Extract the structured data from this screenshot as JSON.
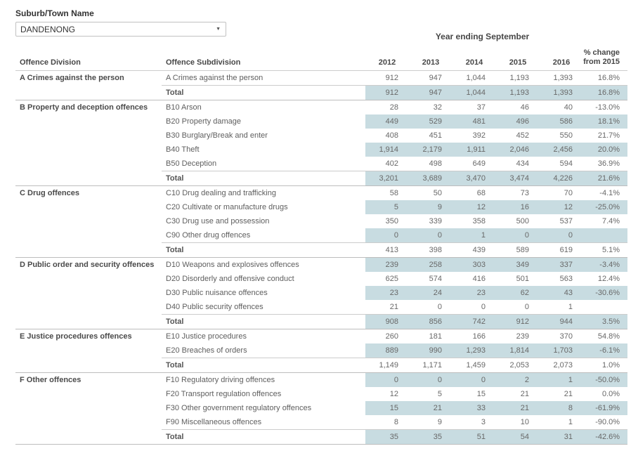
{
  "filter": {
    "label": "Suburb/Town Name",
    "value": "DANDENONG",
    "arrow_icon": "▼"
  },
  "colors": {
    "band": "#c8dce1",
    "header_text": "#474747",
    "body_text": "#686868",
    "divider": "#cccccc",
    "section_divider": "#bdbdbd"
  },
  "table": {
    "title": "Year ending September",
    "col_headers": {
      "division": "Offence Division",
      "subdivision": "Offence Subdivision",
      "years": [
        "2012",
        "2013",
        "2014",
        "2015",
        "2016"
      ],
      "pct_change": {
        "line1": "% change",
        "line2": "from 2015"
      }
    },
    "divisions": [
      {
        "name": "A Crimes against the person",
        "rows": [
          {
            "label": "A Crimes against the person",
            "values": [
              "912",
              "947",
              "1,044",
              "1,193",
              "1,393"
            ],
            "pct": "16.8%",
            "total": false
          },
          {
            "label": "Total",
            "values": [
              "912",
              "947",
              "1,044",
              "1,193",
              "1,393"
            ],
            "pct": "16.8%",
            "total": true
          }
        ]
      },
      {
        "name": "B Property and deception offences",
        "rows": [
          {
            "label": "B10 Arson",
            "values": [
              "28",
              "32",
              "37",
              "46",
              "40"
            ],
            "pct": "-13.0%",
            "total": false
          },
          {
            "label": "B20 Property damage",
            "values": [
              "449",
              "529",
              "481",
              "496",
              "586"
            ],
            "pct": "18.1%",
            "total": false
          },
          {
            "label": "B30 Burglary/Break and enter",
            "values": [
              "408",
              "451",
              "392",
              "452",
              "550"
            ],
            "pct": "21.7%",
            "total": false
          },
          {
            "label": "B40 Theft",
            "values": [
              "1,914",
              "2,179",
              "1,911",
              "2,046",
              "2,456"
            ],
            "pct": "20.0%",
            "total": false
          },
          {
            "label": "B50 Deception",
            "values": [
              "402",
              "498",
              "649",
              "434",
              "594"
            ],
            "pct": "36.9%",
            "total": false
          },
          {
            "label": "Total",
            "values": [
              "3,201",
              "3,689",
              "3,470",
              "3,474",
              "4,226"
            ],
            "pct": "21.6%",
            "total": true
          }
        ]
      },
      {
        "name": "C Drug offences",
        "rows": [
          {
            "label": "C10 Drug dealing and trafficking",
            "values": [
              "58",
              "50",
              "68",
              "73",
              "70"
            ],
            "pct": "-4.1%",
            "total": false
          },
          {
            "label": "C20 Cultivate or manufacture drugs",
            "values": [
              "5",
              "9",
              "12",
              "16",
              "12"
            ],
            "pct": "-25.0%",
            "total": false
          },
          {
            "label": "C30 Drug use and possession",
            "values": [
              "350",
              "339",
              "358",
              "500",
              "537"
            ],
            "pct": "7.4%",
            "total": false
          },
          {
            "label": "C90 Other drug offences",
            "values": [
              "0",
              "0",
              "1",
              "0",
              "0"
            ],
            "pct": "",
            "total": false
          },
          {
            "label": "Total",
            "values": [
              "413",
              "398",
              "439",
              "589",
              "619"
            ],
            "pct": "5.1%",
            "total": true
          }
        ]
      },
      {
        "name": "D Public order and security offences",
        "rows": [
          {
            "label": "D10 Weapons and explosives offences",
            "values": [
              "239",
              "258",
              "303",
              "349",
              "337"
            ],
            "pct": "-3.4%",
            "total": false
          },
          {
            "label": "D20 Disorderly and offensive conduct",
            "values": [
              "625",
              "574",
              "416",
              "501",
              "563"
            ],
            "pct": "12.4%",
            "total": false
          },
          {
            "label": "D30 Public nuisance offences",
            "values": [
              "23",
              "24",
              "23",
              "62",
              "43"
            ],
            "pct": "-30.6%",
            "total": false
          },
          {
            "label": "D40 Public security offences",
            "values": [
              "21",
              "0",
              "0",
              "0",
              "1"
            ],
            "pct": "",
            "total": false
          },
          {
            "label": "Total",
            "values": [
              "908",
              "856",
              "742",
              "912",
              "944"
            ],
            "pct": "3.5%",
            "total": true
          }
        ]
      },
      {
        "name": "E Justice procedures offences",
        "rows": [
          {
            "label": "E10 Justice procedures",
            "values": [
              "260",
              "181",
              "166",
              "239",
              "370"
            ],
            "pct": "54.8%",
            "total": false
          },
          {
            "label": "E20 Breaches of orders",
            "values": [
              "889",
              "990",
              "1,293",
              "1,814",
              "1,703"
            ],
            "pct": "-6.1%",
            "total": false
          },
          {
            "label": "Total",
            "values": [
              "1,149",
              "1,171",
              "1,459",
              "2,053",
              "2,073"
            ],
            "pct": "1.0%",
            "total": true
          }
        ]
      },
      {
        "name": "F Other offences",
        "rows": [
          {
            "label": "F10 Regulatory driving offences",
            "values": [
              "0",
              "0",
              "0",
              "2",
              "1"
            ],
            "pct": "-50.0%",
            "total": false
          },
          {
            "label": "F20 Transport regulation offences",
            "values": [
              "12",
              "5",
              "15",
              "21",
              "21"
            ],
            "pct": "0.0%",
            "total": false
          },
          {
            "label": "F30 Other government regulatory offences",
            "values": [
              "15",
              "21",
              "33",
              "21",
              "8"
            ],
            "pct": "-61.9%",
            "total": false
          },
          {
            "label": "F90 Miscellaneous offences",
            "values": [
              "8",
              "9",
              "3",
              "10",
              "1"
            ],
            "pct": "-90.0%",
            "total": false
          },
          {
            "label": "Total",
            "values": [
              "35",
              "35",
              "51",
              "54",
              "31"
            ],
            "pct": "-42.6%",
            "total": true
          }
        ]
      }
    ]
  }
}
